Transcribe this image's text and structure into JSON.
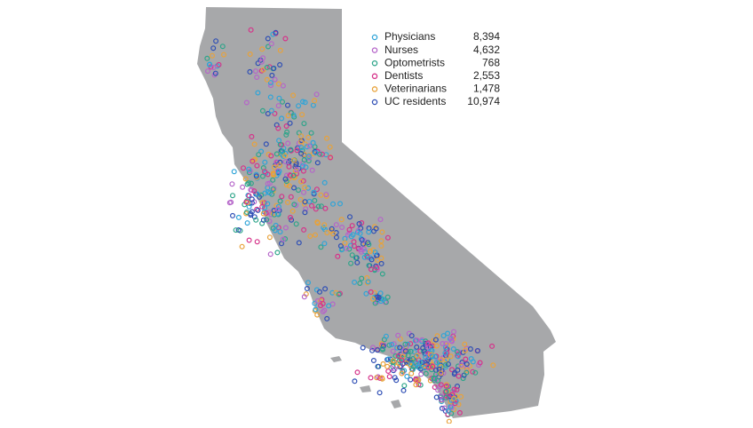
{
  "legend": {
    "items": [
      {
        "name": "Physicians",
        "count": "8,394",
        "color": "#2fa4d8"
      },
      {
        "name": "Nurses",
        "count": "4,632",
        "color": "#b565c9"
      },
      {
        "name": "Optometrists",
        "count": "768",
        "color": "#2fa58a"
      },
      {
        "name": "Dentists",
        "count": "2,553",
        "color": "#d6338a"
      },
      {
        "name": "Veterinarians",
        "count": "1,478",
        "color": "#e8a23a"
      },
      {
        "name": "UC residents",
        "count": "10,974",
        "color": "#2f4fb5"
      }
    ]
  }
}
